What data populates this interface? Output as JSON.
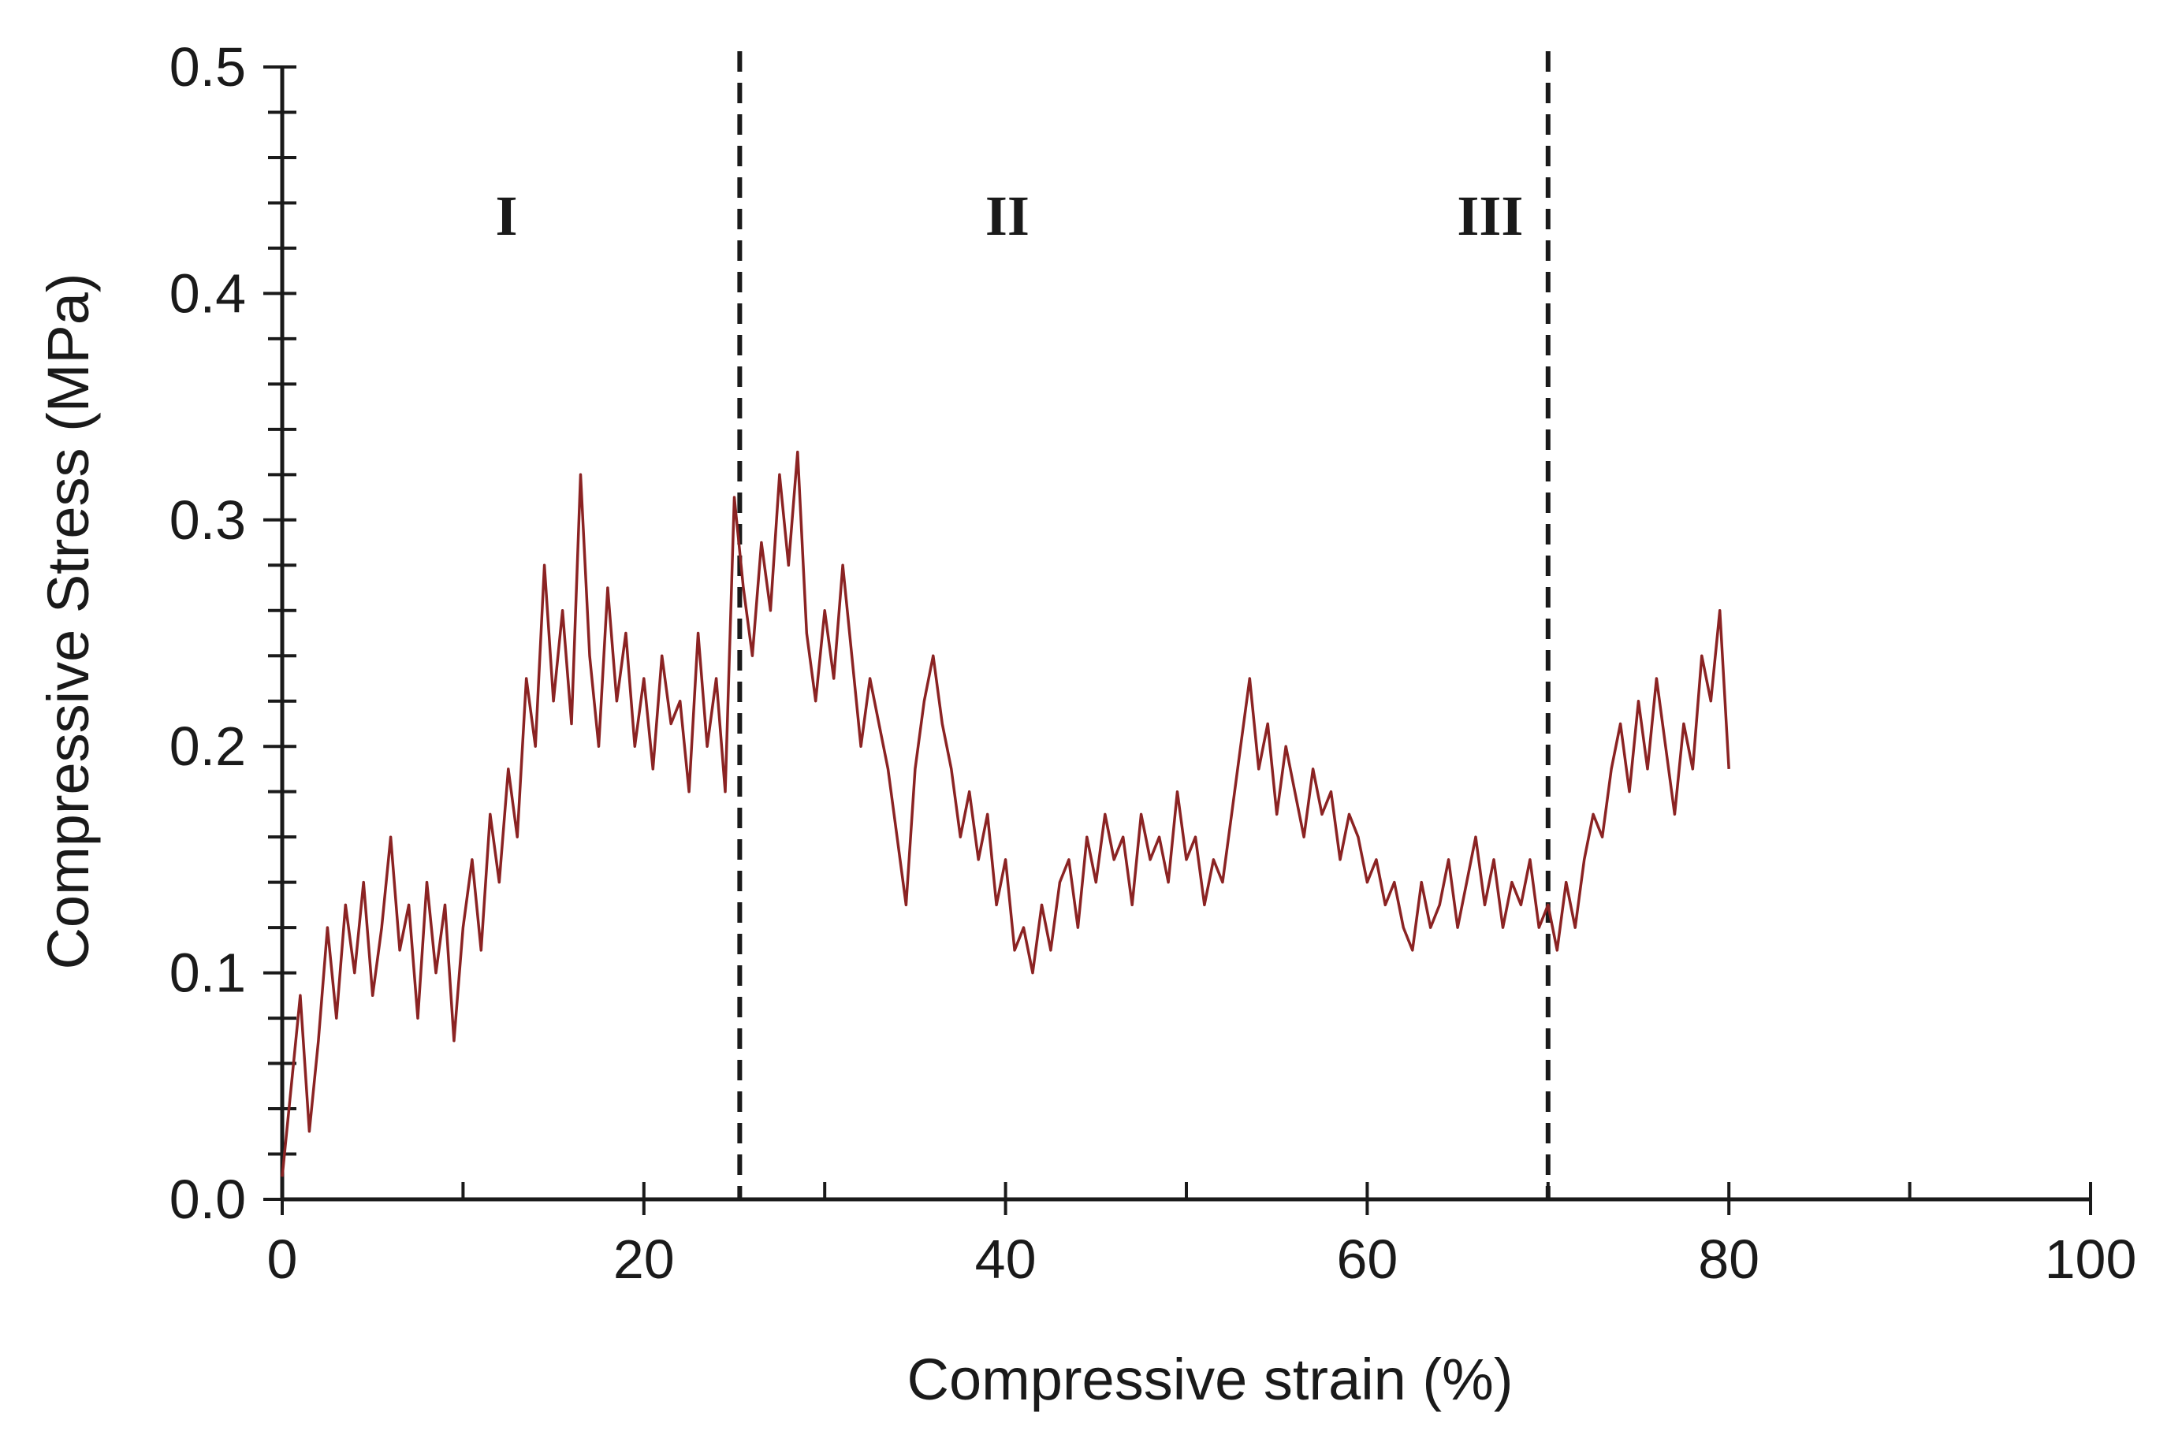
{
  "chart_data": {
    "type": "line",
    "xlabel": "Compressive strain (%)",
    "ylabel": "Compressive Stress (MPa)",
    "xlim": [
      0,
      100
    ],
    "ylim": [
      0,
      0.5
    ],
    "x_ticks": [
      "0",
      "20",
      "40",
      "60",
      "80",
      "100"
    ],
    "y_ticks": [
      "0.0",
      "0.1",
      "0.2",
      "0.3",
      "0.4",
      "0.5"
    ],
    "grid": false,
    "legend": "none",
    "line_color": "#8b2323",
    "region_boundaries": [
      25.3,
      70.0
    ],
    "region_labels": [
      {
        "text": "I",
        "x": 12.4,
        "y": 0.435
      },
      {
        "text": "II",
        "x": 40.1,
        "y": 0.435
      },
      {
        "text": "III",
        "x": 66.8,
        "y": 0.435
      }
    ],
    "series": [
      {
        "x": [
          0,
          0.5,
          1,
          1.5,
          2,
          2.5,
          3,
          3.5,
          4,
          4.5,
          5,
          5.5,
          6,
          6.5,
          7,
          7.5,
          8,
          8.5,
          9,
          9.5,
          10,
          10.5,
          11,
          11.5,
          12,
          12.5,
          13,
          13.5,
          14,
          14.5,
          15,
          15.5,
          16,
          16.5,
          17,
          17.5,
          18,
          18.5,
          19,
          19.5,
          20,
          20.5,
          21,
          21.5,
          22,
          22.5,
          23,
          23.5,
          24,
          24.5,
          25,
          25.5,
          26,
          26.5,
          27,
          27.5,
          28,
          28.5,
          29,
          29.5,
          30,
          30.5,
          31,
          31.5,
          32,
          32.5,
          33,
          33.5,
          34,
          34.5,
          35,
          35.5,
          36,
          36.5,
          37,
          37.5,
          38,
          38.5,
          39,
          39.5,
          40,
          40.5,
          41,
          41.5,
          42,
          42.5,
          43,
          43.5,
          44,
          44.5,
          45,
          45.5,
          46,
          46.5,
          47,
          47.5,
          48,
          48.5,
          49,
          49.5,
          50,
          50.5,
          51,
          51.5,
          52,
          52.5,
          53,
          53.5,
          54,
          54.5,
          55,
          55.5,
          56,
          56.5,
          57,
          57.5,
          58,
          58.5,
          59,
          59.5,
          60,
          60.5,
          61,
          61.5,
          62,
          62.5,
          63,
          63.5,
          64,
          64.5,
          65,
          65.5,
          66,
          66.5,
          67,
          67.5,
          68,
          68.5,
          69,
          69.5,
          70,
          70.5,
          71,
          71.5,
          72,
          72.5,
          73,
          73.5,
          74,
          74.5,
          75,
          75.5,
          76,
          76.5,
          77,
          77.5,
          78,
          78.5,
          79,
          79.5,
          80
        ],
        "y": [
          0.01,
          0.05,
          0.09,
          0.03,
          0.07,
          0.12,
          0.08,
          0.13,
          0.1,
          0.14,
          0.09,
          0.12,
          0.16,
          0.11,
          0.13,
          0.08,
          0.14,
          0.1,
          0.13,
          0.07,
          0.12,
          0.15,
          0.11,
          0.17,
          0.14,
          0.19,
          0.16,
          0.23,
          0.2,
          0.28,
          0.22,
          0.26,
          0.21,
          0.32,
          0.24,
          0.2,
          0.27,
          0.22,
          0.25,
          0.2,
          0.23,
          0.19,
          0.24,
          0.21,
          0.22,
          0.18,
          0.25,
          0.2,
          0.23,
          0.18,
          0.31,
          0.27,
          0.24,
          0.29,
          0.26,
          0.32,
          0.28,
          0.33,
          0.25,
          0.22,
          0.26,
          0.23,
          0.28,
          0.24,
          0.2,
          0.23,
          0.21,
          0.19,
          0.16,
          0.13,
          0.19,
          0.22,
          0.24,
          0.21,
          0.19,
          0.16,
          0.18,
          0.15,
          0.17,
          0.13,
          0.15,
          0.11,
          0.12,
          0.1,
          0.13,
          0.11,
          0.14,
          0.15,
          0.12,
          0.16,
          0.14,
          0.17,
          0.15,
          0.16,
          0.13,
          0.17,
          0.15,
          0.16,
          0.14,
          0.18,
          0.15,
          0.16,
          0.13,
          0.15,
          0.14,
          0.17,
          0.2,
          0.23,
          0.19,
          0.21,
          0.17,
          0.2,
          0.18,
          0.16,
          0.19,
          0.17,
          0.18,
          0.15,
          0.17,
          0.16,
          0.14,
          0.15,
          0.13,
          0.14,
          0.12,
          0.11,
          0.14,
          0.12,
          0.13,
          0.15,
          0.12,
          0.14,
          0.16,
          0.13,
          0.15,
          0.12,
          0.14,
          0.13,
          0.15,
          0.12,
          0.13,
          0.11,
          0.14,
          0.12,
          0.15,
          0.17,
          0.16,
          0.19,
          0.21,
          0.18,
          0.22,
          0.19,
          0.23,
          0.2,
          0.17,
          0.21,
          0.19,
          0.24,
          0.22,
          0.26,
          0.19
        ]
      }
    ]
  }
}
